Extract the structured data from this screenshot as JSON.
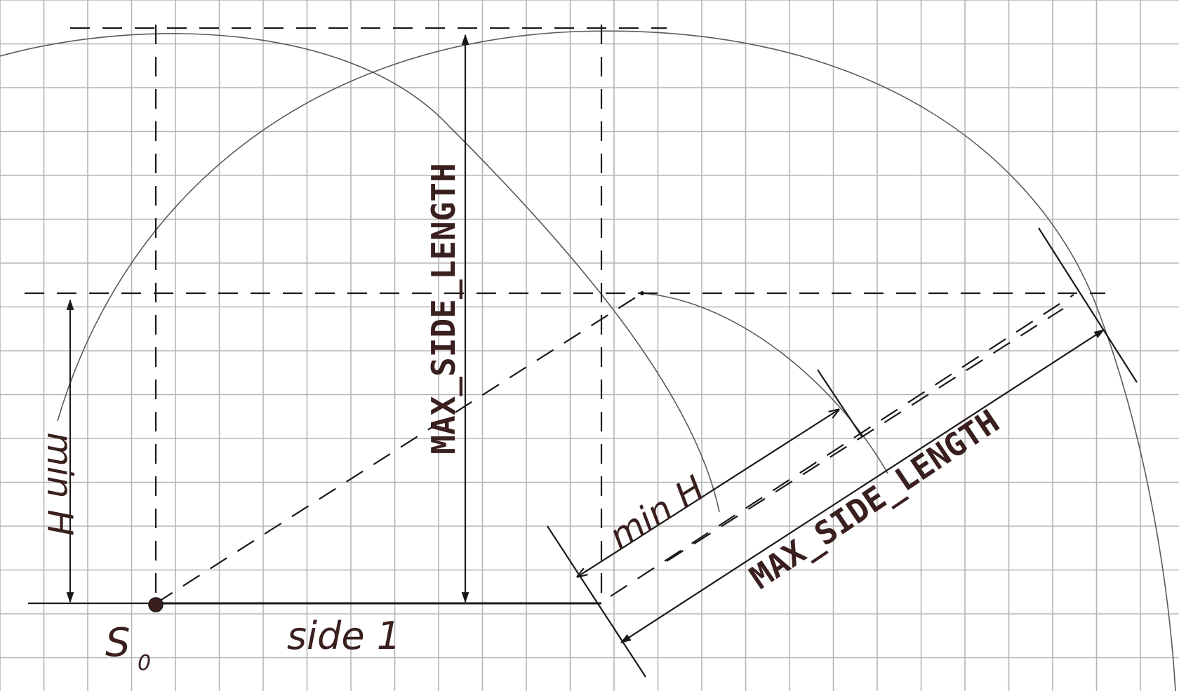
{
  "diagram": {
    "labels": {
      "vertical_max": "MAX_SIDE_LENGTH",
      "diagonal_max": "MAX_SIDE_LENGTH",
      "left_min": "min H",
      "diagonal_min": "min H",
      "side": "side 1",
      "start_point": "S",
      "start_point_sub": "0"
    },
    "colors": {
      "paper": "#ffffff",
      "grid": "#b5b5b5",
      "pencil": "#5a5a5a",
      "ink": "#1c1818",
      "label": "#3a1f1f"
    }
  }
}
